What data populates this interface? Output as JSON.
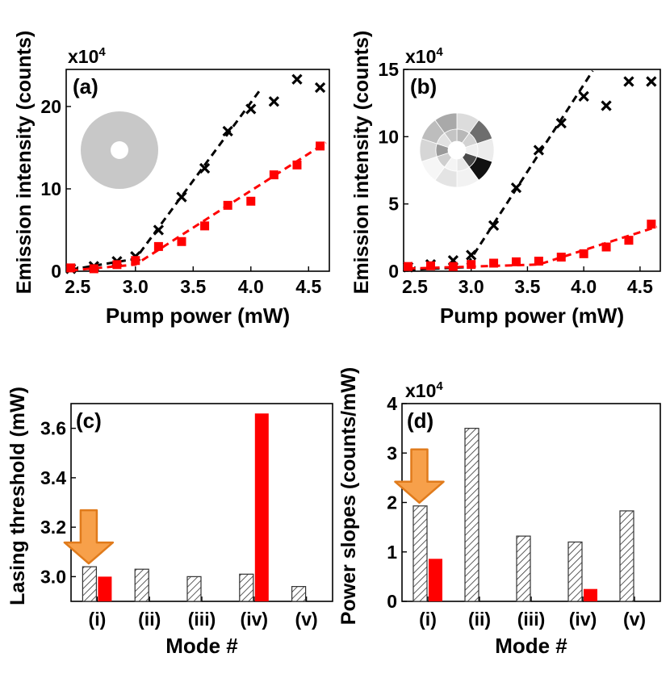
{
  "colors": {
    "series_a": "#000000",
    "series_b": "#ff0000",
    "arrow_fill": "#f7a04a",
    "arrow_stroke": "#e07b1c",
    "disk_gray": "#c8c8c8",
    "hatch": "#333333"
  },
  "chart_data": [
    {
      "id": "a",
      "type": "scatter",
      "panel_label": "(a)",
      "multiplier": "x10",
      "multiplier_exp": "4",
      "xlabel": "Pump power (mW)",
      "ylabel": "Emission intensity (counts)",
      "xlim": [
        2.4,
        4.68
      ],
      "ylim": [
        0,
        24.5
      ],
      "xticks": [
        2.5,
        3.0,
        3.5,
        4.0,
        4.5
      ],
      "xtick_labels": [
        "2.5",
        "3.0",
        "3.5",
        "4.0",
        "4.5"
      ],
      "yticks": [
        0,
        10,
        20
      ],
      "ytick_labels": [
        "0",
        "10",
        "20"
      ],
      "inset": "uniform-disk",
      "series": [
        {
          "name": "cross-markers",
          "marker": "x",
          "x": [
            2.44,
            2.64,
            2.84,
            3.0,
            3.2,
            3.4,
            3.6,
            3.8,
            4.0,
            4.2,
            4.4,
            4.6
          ],
          "y": [
            0.3,
            0.6,
            1.2,
            1.8,
            5.0,
            9.0,
            12.5,
            17.0,
            19.7,
            20.6,
            23.3,
            22.3
          ],
          "fit_x": [
            2.44,
            3.0,
            4.08
          ],
          "fit_y": [
            0.2,
            1.5,
            22.0
          ]
        },
        {
          "name": "square-markers",
          "marker": "square",
          "x": [
            2.44,
            2.64,
            2.84,
            3.0,
            3.2,
            3.4,
            3.6,
            3.8,
            4.0,
            4.2,
            4.4,
            4.6
          ],
          "y": [
            0.4,
            0.3,
            0.8,
            1.3,
            3.0,
            3.6,
            5.5,
            8.0,
            8.5,
            11.7,
            12.9,
            15.2
          ],
          "fit_x": [
            2.44,
            3.0,
            4.65
          ],
          "fit_y": [
            0.1,
            0.8,
            15.6
          ]
        }
      ]
    },
    {
      "id": "b",
      "type": "scatter",
      "panel_label": "(b)",
      "multiplier": "x10",
      "multiplier_exp": "4",
      "xlabel": "Pump power (mW)",
      "ylabel": "Emission intensity (counts)",
      "xlim": [
        2.4,
        4.68
      ],
      "ylim": [
        0,
        15
      ],
      "xticks": [
        2.5,
        3.0,
        3.5,
        4.0,
        4.5
      ],
      "xtick_labels": [
        "2.5",
        "3.0",
        "3.5",
        "4.0",
        "4.5"
      ],
      "yticks": [
        0,
        5,
        10,
        15
      ],
      "ytick_labels": [
        "0",
        "5",
        "10",
        "15"
      ],
      "inset": "speckle-disk",
      "series": [
        {
          "name": "cross-markers",
          "marker": "x",
          "x": [
            2.44,
            2.64,
            2.84,
            3.0,
            3.2,
            3.4,
            3.6,
            3.8,
            4.0,
            4.2,
            4.4,
            4.6
          ],
          "y": [
            0.3,
            0.5,
            0.8,
            1.2,
            3.4,
            6.2,
            9.0,
            11.0,
            13.0,
            12.3,
            14.1,
            14.1
          ],
          "fit_x": [
            2.44,
            2.95,
            4.08
          ],
          "fit_y": [
            0.1,
            0.3,
            14.9
          ]
        },
        {
          "name": "square-markers",
          "marker": "square",
          "x": [
            2.44,
            2.64,
            2.84,
            3.0,
            3.2,
            3.4,
            3.6,
            3.8,
            4.0,
            4.2,
            4.4,
            4.6
          ],
          "y": [
            0.35,
            0.4,
            0.35,
            0.5,
            0.6,
            0.7,
            0.75,
            1.05,
            1.3,
            1.8,
            2.3,
            3.5
          ],
          "fit_x": [
            2.44,
            3.6,
            4.65
          ],
          "fit_y": [
            0.2,
            0.5,
            3.3
          ]
        }
      ]
    },
    {
      "id": "c",
      "type": "bar",
      "panel_label": "(c)",
      "xlabel": "Mode #",
      "ylabel": "Lasing threshold (mW)",
      "categories": [
        "(i)",
        "(ii)",
        "(iii)",
        "(iv)",
        "(v)"
      ],
      "ylim": [
        2.9,
        3.7
      ],
      "yticks": [
        3.0,
        3.2,
        3.4,
        3.6
      ],
      "ytick_labels": [
        "3.0",
        "3.2",
        "3.4",
        "3.6"
      ],
      "series": [
        {
          "name": "hatched",
          "pattern": "hatch",
          "values": [
            3.04,
            3.03,
            3.0,
            3.01,
            2.96
          ]
        },
        {
          "name": "solid",
          "pattern": "solid",
          "values": [
            3.0,
            null,
            null,
            3.66,
            null
          ]
        }
      ],
      "arrow_category": "(i)"
    },
    {
      "id": "d",
      "type": "bar",
      "panel_label": "(d)",
      "multiplier": "x10",
      "multiplier_exp": "4",
      "xlabel": "Mode #",
      "ylabel": "Power slopes (counts/mW)",
      "categories": [
        "(i)",
        "(ii)",
        "(iii)",
        "(iv)",
        "(v)"
      ],
      "ylim": [
        0,
        4
      ],
      "yticks": [
        0,
        1,
        2,
        3,
        4
      ],
      "ytick_labels": [
        "0",
        "1",
        "2",
        "3",
        "4"
      ],
      "series": [
        {
          "name": "hatched",
          "pattern": "hatch",
          "values": [
            1.93,
            3.5,
            1.32,
            1.2,
            1.83
          ]
        },
        {
          "name": "solid",
          "pattern": "solid",
          "values": [
            0.86,
            null,
            null,
            0.25,
            null
          ]
        }
      ],
      "arrow_category": "(i)"
    }
  ]
}
